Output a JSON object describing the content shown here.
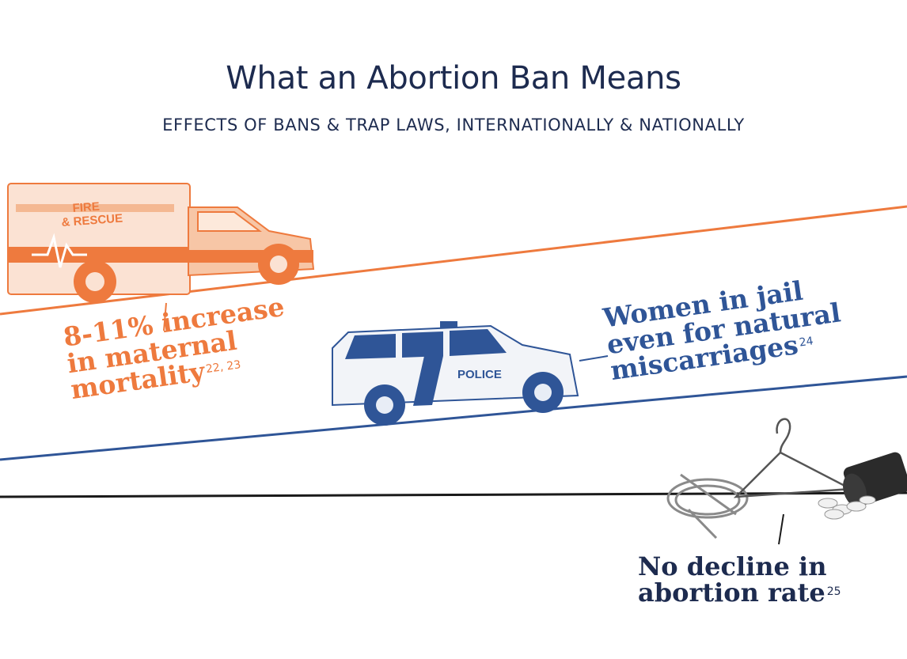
{
  "header": {
    "title": "What an Abortion Ban Means",
    "subtitle": "EFFECTS OF BANS & TRAP LAWS, INTERNATIONALLY & NATIONALLY"
  },
  "colors": {
    "orange": "#ee7a3e",
    "blue": "#2f5597",
    "navy": "#1d2b4f",
    "black": "#1a1a1a"
  },
  "callouts": [
    {
      "lines": [
        "8-11% increase",
        "in maternal",
        "mortality"
      ],
      "ref": "22, 23"
    },
    {
      "lines": [
        "Women in jail",
        "even for natural",
        "miscarriages"
      ],
      "ref": "24"
    },
    {
      "lines": [
        "No decline in",
        "abortion rate"
      ],
      "ref": "25"
    }
  ],
  "vehicles": {
    "ambulance_label_1": "FIRE",
    "ambulance_label_2": "& RESCUE",
    "police_label": "POLICE"
  },
  "icons": [
    "ambulance-icon",
    "police-suv-icon",
    "coat-hanger-icon",
    "tubing-icon",
    "pill-bottle-icon"
  ]
}
